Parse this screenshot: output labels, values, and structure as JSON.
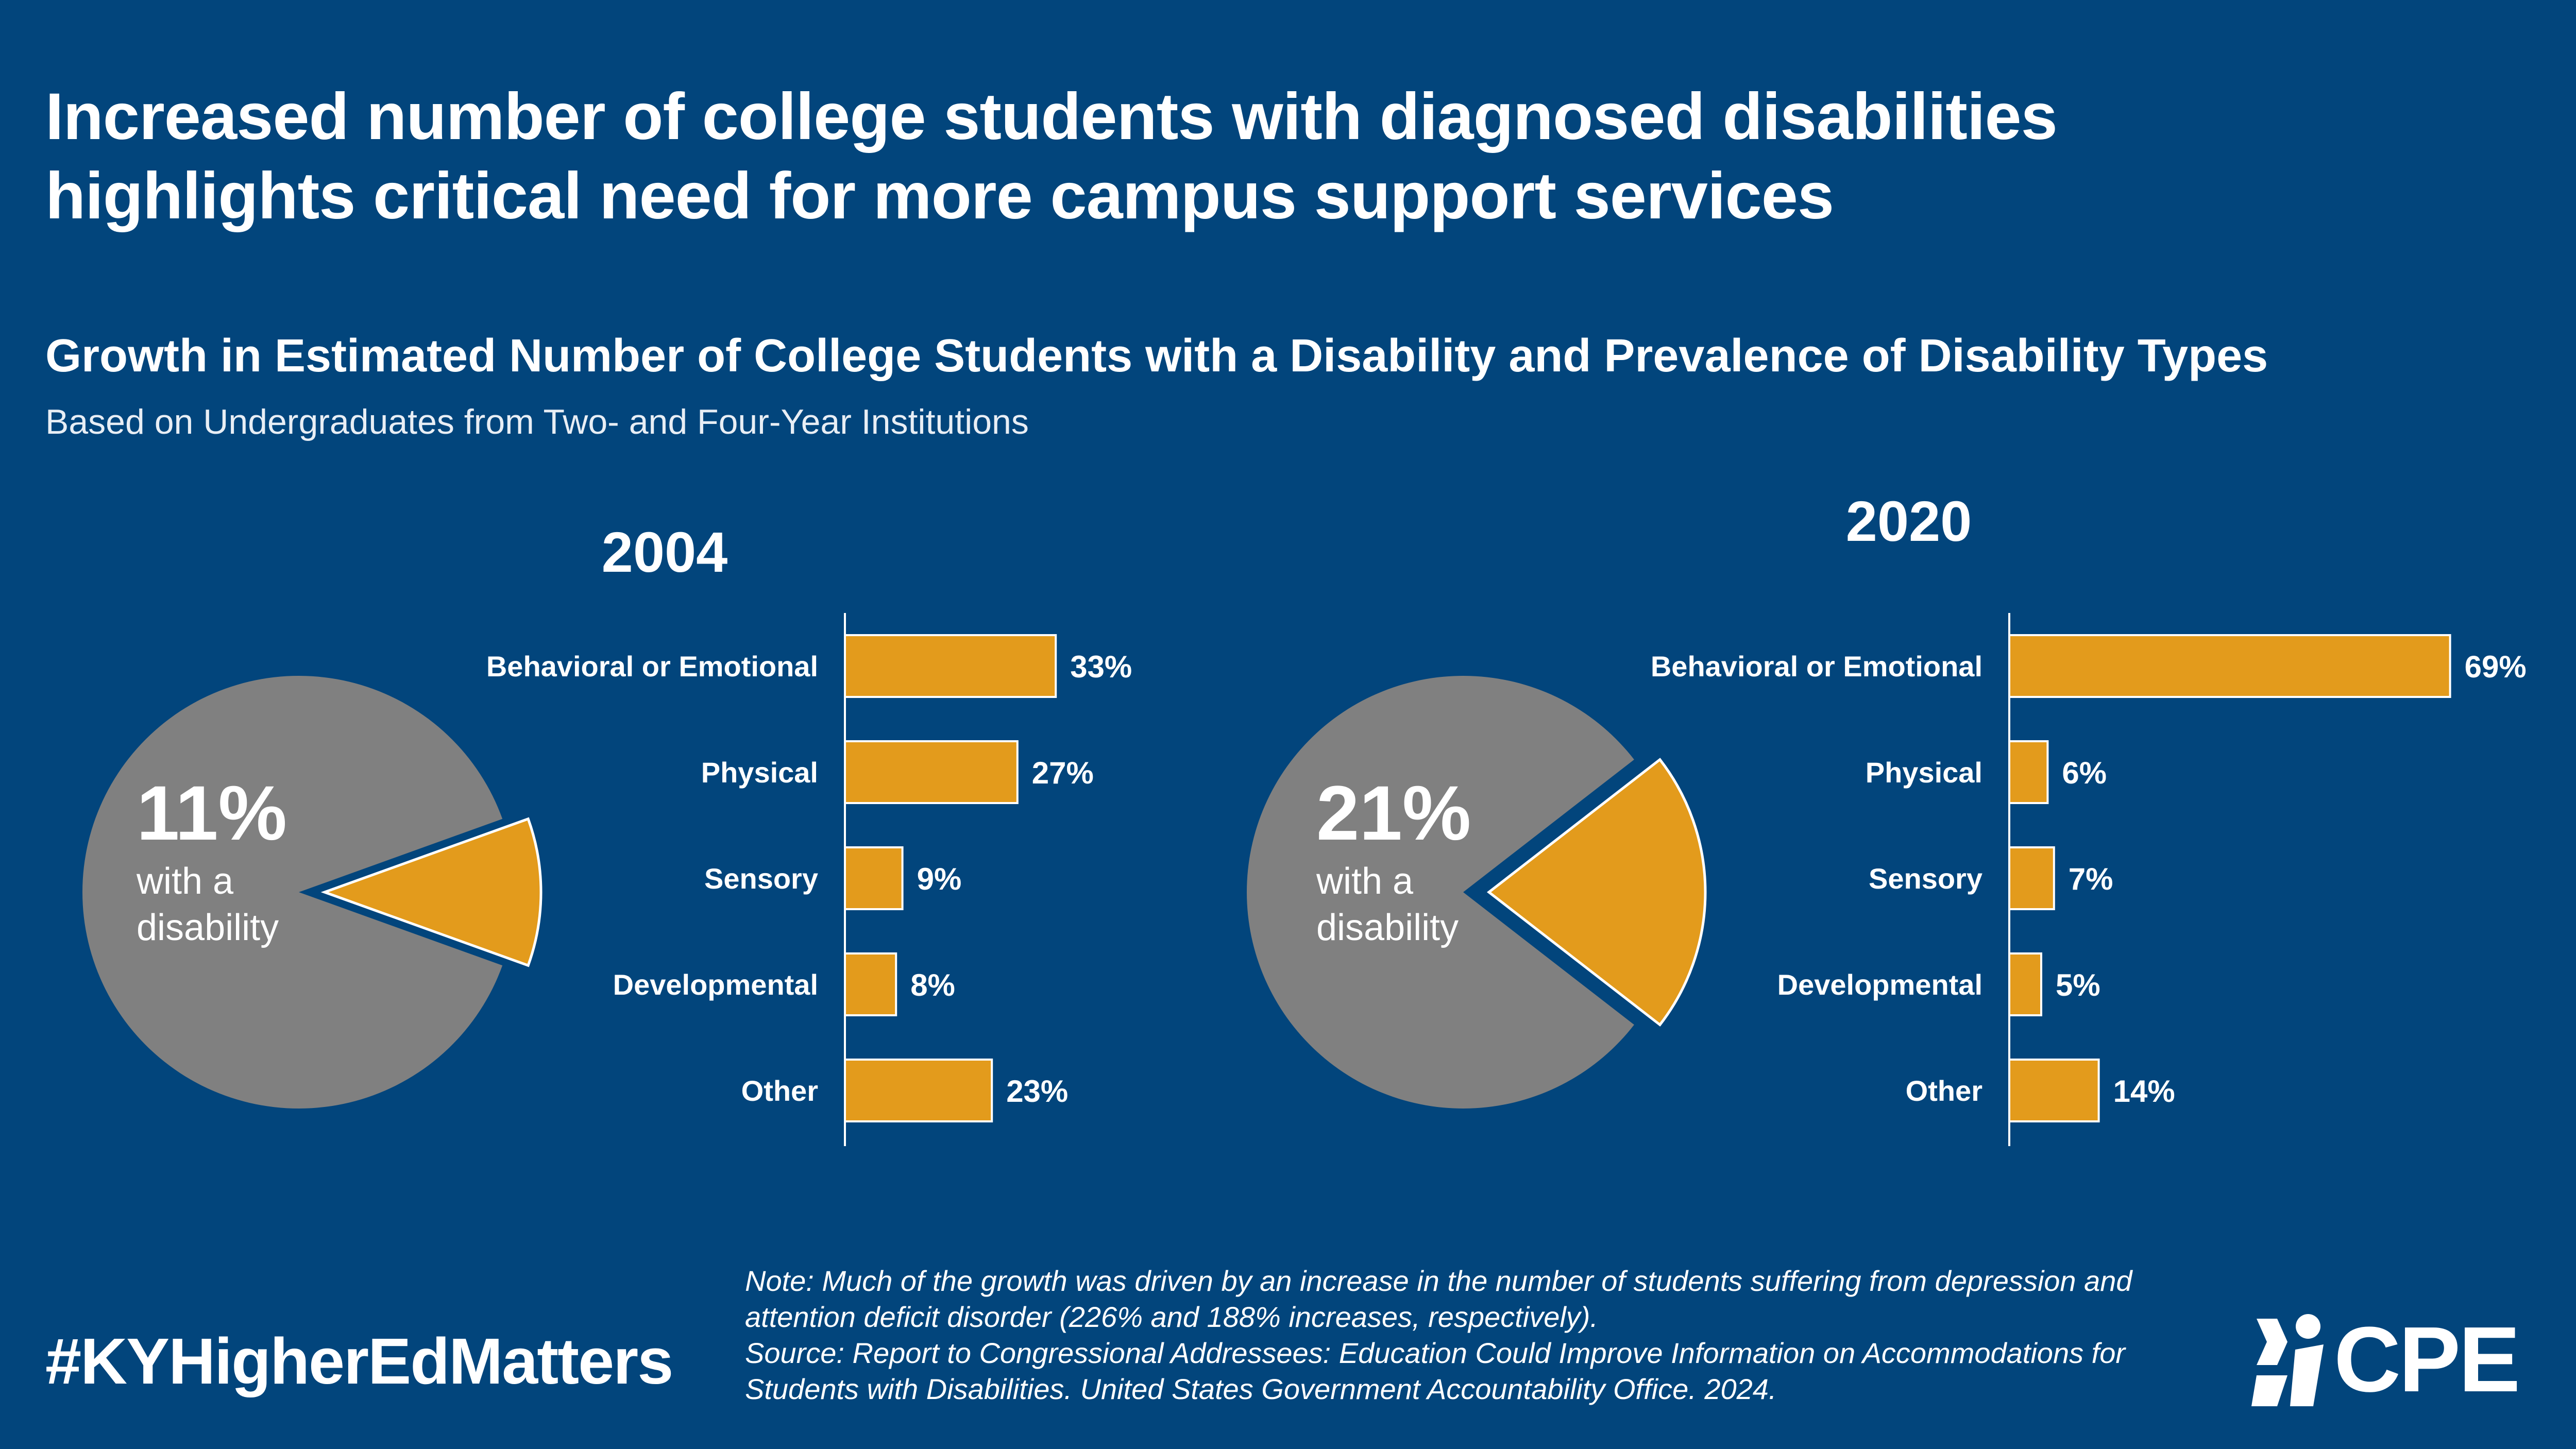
{
  "title_line1": "Increased number of college students with diagnosed disabilities",
  "title_line2": "highlights critical need for more campus support services",
  "subtitle": "Growth in Estimated Number of College Students with a Disability and Prevalence of Disability Types",
  "caption": "Based on Undergraduates from Two- and Four-Year Institutions",
  "hashtag": "#KYHigherEdMatters",
  "note_line1": "Note: Much of the growth was driven by an increase in the number of students suffering from depression and",
  "note_line2": "attention deficit disorder (226% and 188% increases, respectively).",
  "note_line3": "Source: Report to Congressional Addressees: Education Could Improve Information on Accommodations for",
  "note_line4": "Students with Disabilities. United States Government Accountability Office. 2024.",
  "logo": "CPE",
  "colors": {
    "background": "#02457c",
    "pie_main": "#808080",
    "accent": "#e39b1c"
  },
  "chart_data": [
    {
      "type": "pie",
      "title": "2004",
      "slices": [
        {
          "label": "with a disability",
          "value": 11
        },
        {
          "label": "",
          "value": 89
        }
      ],
      "callout_value": "11%",
      "callout_text_line1": "with a",
      "callout_text_line2": "disability"
    },
    {
      "type": "bar",
      "title": "2004",
      "categories": [
        "Behavioral or Emotional",
        "Physical",
        "Sensory",
        "Developmental",
        "Other"
      ],
      "values": [
        33,
        27,
        9,
        8,
        23
      ],
      "value_labels": [
        "33%",
        "27%",
        "9%",
        "8%",
        "23%"
      ]
    },
    {
      "type": "pie",
      "title": "2020",
      "slices": [
        {
          "label": "with a disability",
          "value": 21
        },
        {
          "label": "",
          "value": 79
        }
      ],
      "callout_value": "21%",
      "callout_text_line1": "with a",
      "callout_text_line2": "disability"
    },
    {
      "type": "bar",
      "title": "2020",
      "categories": [
        "Behavioral or Emotional",
        "Physical",
        "Sensory",
        "Developmental",
        "Other"
      ],
      "values": [
        69,
        6,
        7,
        5,
        14
      ],
      "value_labels": [
        "69%",
        "6%",
        "7%",
        "5%",
        "14%"
      ]
    }
  ]
}
